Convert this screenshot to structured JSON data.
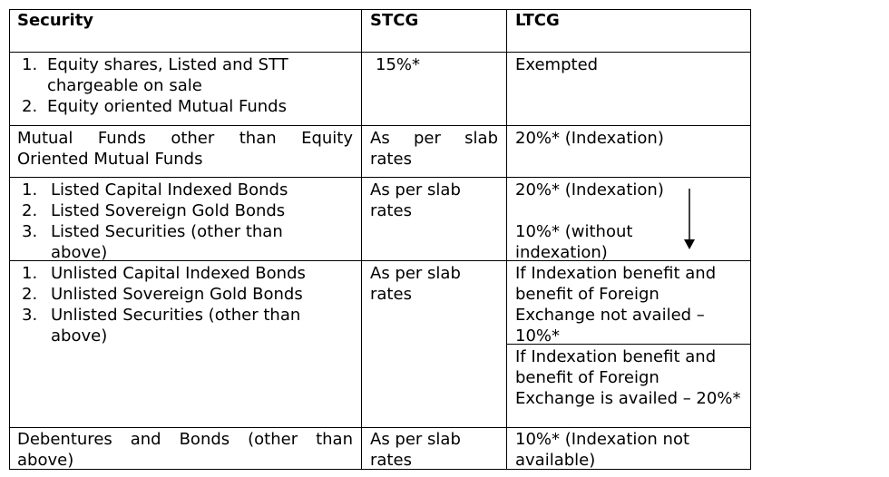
{
  "header": {
    "security": "Security",
    "stcg": "STCG",
    "ltcg": "LTCG"
  },
  "rows": [
    {
      "security_items": [
        "Equity shares, Listed and STT chargeable on sale",
        "Equity oriented Mutual Funds"
      ],
      "stcg": "15%*",
      "ltcg": "Exempted"
    },
    {
      "security_line1": "Mutual Funds other than Equity",
      "security_line2": "Oriented Mutual Funds",
      "stcg_line1": "As per slab",
      "stcg_line2": "rates",
      "ltcg": "20%* (Indexation)"
    },
    {
      "security_items": [
        "Listed Capital Indexed Bonds",
        "Listed Sovereign Gold Bonds",
        "Listed Securities (other than above)"
      ],
      "stcg": "As per slab rates",
      "ltcg_a": "20%* (Indexation)",
      "ltcg_b": "10%* (without indexation)"
    },
    {
      "security_items": [
        "Unlisted Capital Indexed Bonds",
        "Unlisted Sovereign Gold Bonds",
        "Unlisted Securities (other than above)"
      ],
      "stcg": "As per slab rates",
      "ltcg_a": "If Indexation benefit and benefit of Foreign Exchange not availed – 10%*",
      "ltcg_b": "If Indexation benefit and benefit of Foreign Exchange is availed – 20%*"
    },
    {
      "security_line1": "Debentures and Bonds (other than",
      "security_line2": "above)",
      "stcg": "As per slab rates",
      "ltcg": "10%* (Indexation not available)"
    }
  ],
  "item_numbers": [
    "1.",
    "2.",
    "3."
  ]
}
